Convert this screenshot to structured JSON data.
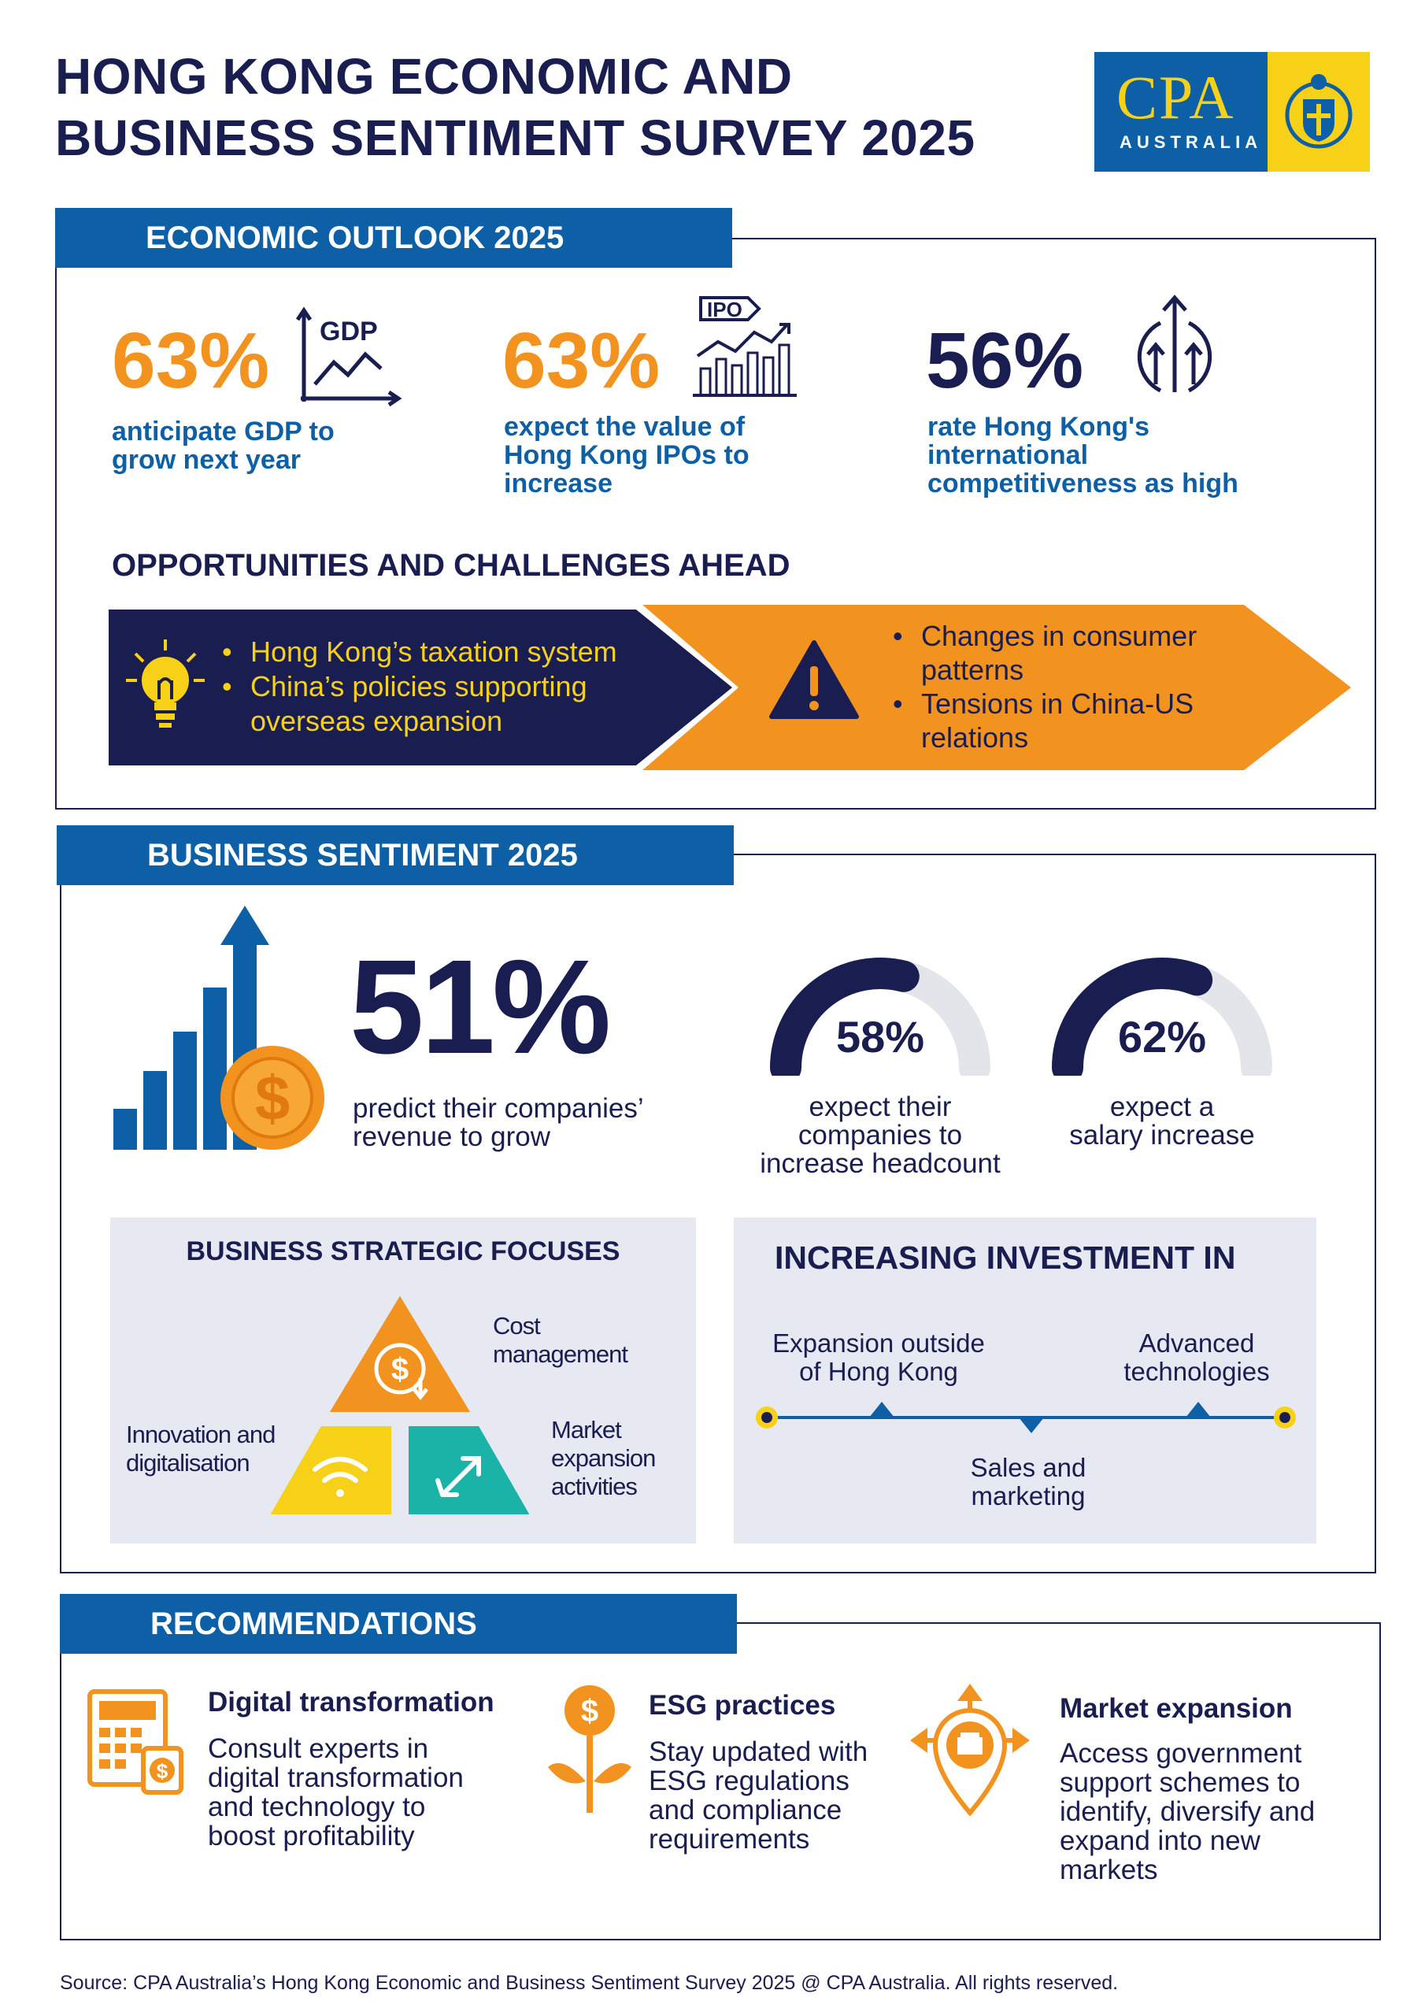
{
  "title": {
    "line1": "HONG KONG ECONOMIC AND",
    "line2": "BUSINESS SENTIMENT SURVEY 2025"
  },
  "logo": {
    "brand": "CPA",
    "country": "AUSTRALIA"
  },
  "economic_outlook": {
    "heading": "ECONOMIC OUTLOOK 2025",
    "stats": [
      {
        "value": "63%",
        "desc": [
          "anticipate GDP to",
          "grow next year"
        ],
        "icon_label": "GDP",
        "icon": "gdp-chart-icon"
      },
      {
        "value": "63%",
        "desc": [
          "expect the value of",
          "Hong Kong IPOs to",
          "increase"
        ],
        "icon_label": "IPO",
        "icon": "ipo-chart-icon"
      },
      {
        "value": "56%",
        "desc": [
          "rate Hong Kong's",
          "international",
          "competitiveness as high"
        ],
        "icon": "growth-arrows-icon"
      }
    ],
    "opportunities_heading": "OPPORTUNITIES AND CHALLENGES AHEAD",
    "opportunities": [
      "Hong Kong’s taxation system",
      "China’s policies supporting",
      "overseas expansion"
    ],
    "challenges": [
      "Changes in consumer",
      "patterns",
      "Tensions in China-US",
      "relations"
    ]
  },
  "business_sentiment": {
    "heading": "BUSINESS SENTIMENT 2025",
    "revenue": {
      "value": "51%",
      "desc": [
        "predict their companies’",
        "revenue to grow"
      ]
    },
    "gauges": [
      {
        "value": "58%",
        "fraction": 0.58,
        "desc": [
          "expect their",
          "companies to",
          "increase headcount"
        ]
      },
      {
        "value": "62%",
        "fraction": 0.62,
        "desc": [
          "expect a",
          "salary increase"
        ]
      }
    ],
    "strategic": {
      "heading": "BUSINESS STRATEGIC FOCUSES",
      "cost": [
        "Cost",
        "management"
      ],
      "innovation": [
        "Innovation and",
        "digitalisation"
      ],
      "market": [
        "Market",
        "expansion",
        "activities"
      ]
    },
    "investment": {
      "heading": "INCREASING INVESTMENT IN",
      "item1": [
        "Expansion outside",
        "of Hong Kong"
      ],
      "item2": [
        "Sales and",
        "marketing"
      ],
      "item3": [
        "Advanced",
        "technologies"
      ]
    }
  },
  "recommendations": {
    "heading": "RECOMMENDATIONS",
    "items": [
      {
        "title": "Digital transformation",
        "desc": [
          "Consult experts in",
          "digital transformation",
          "and technology to",
          "boost profitability"
        ],
        "icon": "calculator-icon"
      },
      {
        "title": "ESG practices",
        "desc": [
          "Stay updated with",
          "ESG regulations",
          "and compliance",
          "requirements"
        ],
        "icon": "money-plant-icon"
      },
      {
        "title": "Market expansion",
        "desc": [
          "Access government",
          "support schemes to",
          "identify, diversify and",
          "expand into new",
          "markets"
        ],
        "icon": "location-expansion-icon"
      }
    ]
  },
  "source": "Source: CPA Australia’s Hong Kong Economic and Business Sentiment Survey 2025 @ CPA Australia. All rights reserved.",
  "colors": {
    "navy": "#1a1d4f",
    "blue": "#0d5fa6",
    "orange": "#f2921f",
    "yellow": "#f7d117",
    "teal": "#1bb3a8",
    "grey": "#e6e8f2"
  }
}
